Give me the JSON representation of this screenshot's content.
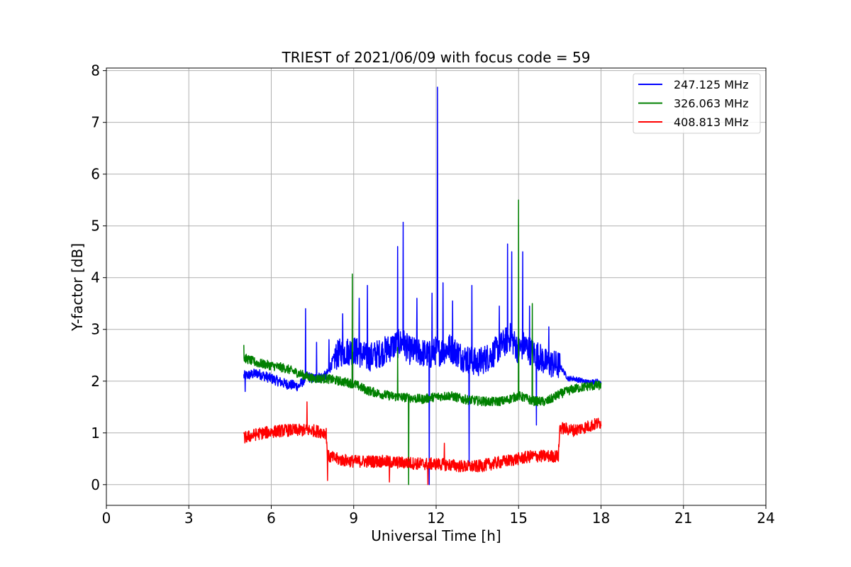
{
  "chart_data": {
    "type": "line",
    "title": "TRIEST of 2021/06/09 with focus code = 59",
    "xlabel": "Universal Time [h]",
    "ylabel": "Y-factor [dB]",
    "xlim": [
      0,
      24
    ],
    "ylim": [
      -0.4,
      8.05
    ],
    "xticks": [
      "0",
      "3",
      "6",
      "9",
      "12",
      "15",
      "18",
      "21",
      "24"
    ],
    "yticks": [
      "0",
      "1",
      "2",
      "3",
      "4",
      "5",
      "6",
      "7",
      "8"
    ],
    "grid": true,
    "legend_position": "top-right",
    "series": [
      {
        "name": "247.125 MHz",
        "color": "#0000ff",
        "x": [
          5.0,
          5.5,
          6.0,
          6.5,
          7.0,
          7.3,
          7.5,
          8.0,
          8.3,
          8.5,
          9.0,
          9.5,
          10.0,
          10.5,
          10.8,
          11.0,
          11.5,
          11.8,
          12.0,
          12.05,
          12.5,
          13.0,
          13.3,
          13.5,
          14.0,
          14.5,
          14.7,
          15.0,
          15.2,
          15.5,
          15.7,
          16.0,
          16.5,
          16.8,
          17.0,
          17.5,
          18.0
        ],
        "y": [
          2.1,
          2.15,
          2.05,
          1.95,
          1.9,
          2.1,
          2.05,
          2.1,
          2.45,
          2.55,
          2.6,
          2.45,
          2.55,
          2.7,
          2.75,
          2.6,
          2.55,
          2.5,
          2.6,
          2.55,
          2.65,
          2.45,
          2.4,
          2.35,
          2.5,
          2.75,
          2.85,
          2.6,
          2.7,
          2.55,
          2.5,
          2.35,
          2.3,
          2.05,
          2.05,
          1.98,
          2.0
        ],
        "spikes": [
          [
            5.05,
            1.8
          ],
          [
            7.25,
            3.4
          ],
          [
            7.65,
            2.75
          ],
          [
            8.1,
            2.8
          ],
          [
            8.6,
            3.3
          ],
          [
            9.5,
            3.85
          ],
          [
            9.2,
            3.6
          ],
          [
            10.6,
            4.6
          ],
          [
            10.8,
            5.07
          ],
          [
            11.3,
            3.6
          ],
          [
            11.75,
            0.0
          ],
          [
            11.85,
            3.7
          ],
          [
            12.05,
            7.68
          ],
          [
            12.25,
            3.9
          ],
          [
            12.6,
            3.55
          ],
          [
            13.2,
            0.4
          ],
          [
            13.3,
            3.85
          ],
          [
            14.3,
            3.45
          ],
          [
            14.6,
            4.65
          ],
          [
            14.75,
            4.5
          ],
          [
            15.15,
            4.5
          ],
          [
            15.4,
            3.45
          ],
          [
            15.65,
            1.15
          ],
          [
            16.1,
            3.05
          ]
        ]
      },
      {
        "name": "326.063 MHz",
        "color": "#008000",
        "x": [
          5.0,
          5.5,
          6.0,
          6.5,
          7.0,
          7.5,
          8.0,
          8.5,
          9.0,
          9.5,
          10.0,
          10.5,
          11.0,
          11.5,
          12.0,
          12.5,
          13.0,
          13.5,
          14.0,
          14.5,
          15.0,
          15.5,
          16.0,
          16.5,
          17.0,
          17.5,
          18.0
        ],
        "y": [
          2.45,
          2.35,
          2.3,
          2.25,
          2.15,
          2.05,
          2.05,
          2.0,
          1.95,
          1.82,
          1.75,
          1.7,
          1.68,
          1.65,
          1.7,
          1.72,
          1.65,
          1.62,
          1.6,
          1.62,
          1.72,
          1.62,
          1.6,
          1.75,
          1.85,
          1.9,
          1.92
        ],
        "spikes": [
          [
            5.0,
            2.7
          ],
          [
            8.95,
            4.07
          ],
          [
            10.6,
            2.65
          ],
          [
            11.0,
            0.0
          ],
          [
            15.0,
            5.5
          ],
          [
            15.5,
            3.5
          ]
        ]
      },
      {
        "name": "408.813 MHz",
        "color": "#ff0000",
        "x": [
          5.0,
          5.5,
          6.0,
          6.5,
          7.0,
          7.5,
          8.0,
          8.05,
          8.5,
          9.0,
          9.5,
          10.0,
          10.5,
          11.0,
          11.5,
          12.0,
          12.5,
          13.0,
          13.5,
          14.0,
          14.5,
          15.0,
          15.5,
          16.0,
          16.45,
          16.5,
          17.0,
          17.5,
          18.0
        ],
        "y": [
          0.9,
          0.98,
          1.02,
          1.05,
          1.05,
          1.05,
          1.0,
          0.55,
          0.48,
          0.45,
          0.45,
          0.45,
          0.43,
          0.42,
          0.4,
          0.4,
          0.38,
          0.35,
          0.35,
          0.4,
          0.45,
          0.5,
          0.55,
          0.55,
          0.55,
          1.1,
          1.05,
          1.12,
          1.2
        ],
        "spikes": [
          [
            7.3,
            1.6
          ],
          [
            8.05,
            0.08
          ],
          [
            10.3,
            0.05
          ],
          [
            11.7,
            0.0
          ],
          [
            12.3,
            0.8
          ]
        ]
      }
    ]
  }
}
